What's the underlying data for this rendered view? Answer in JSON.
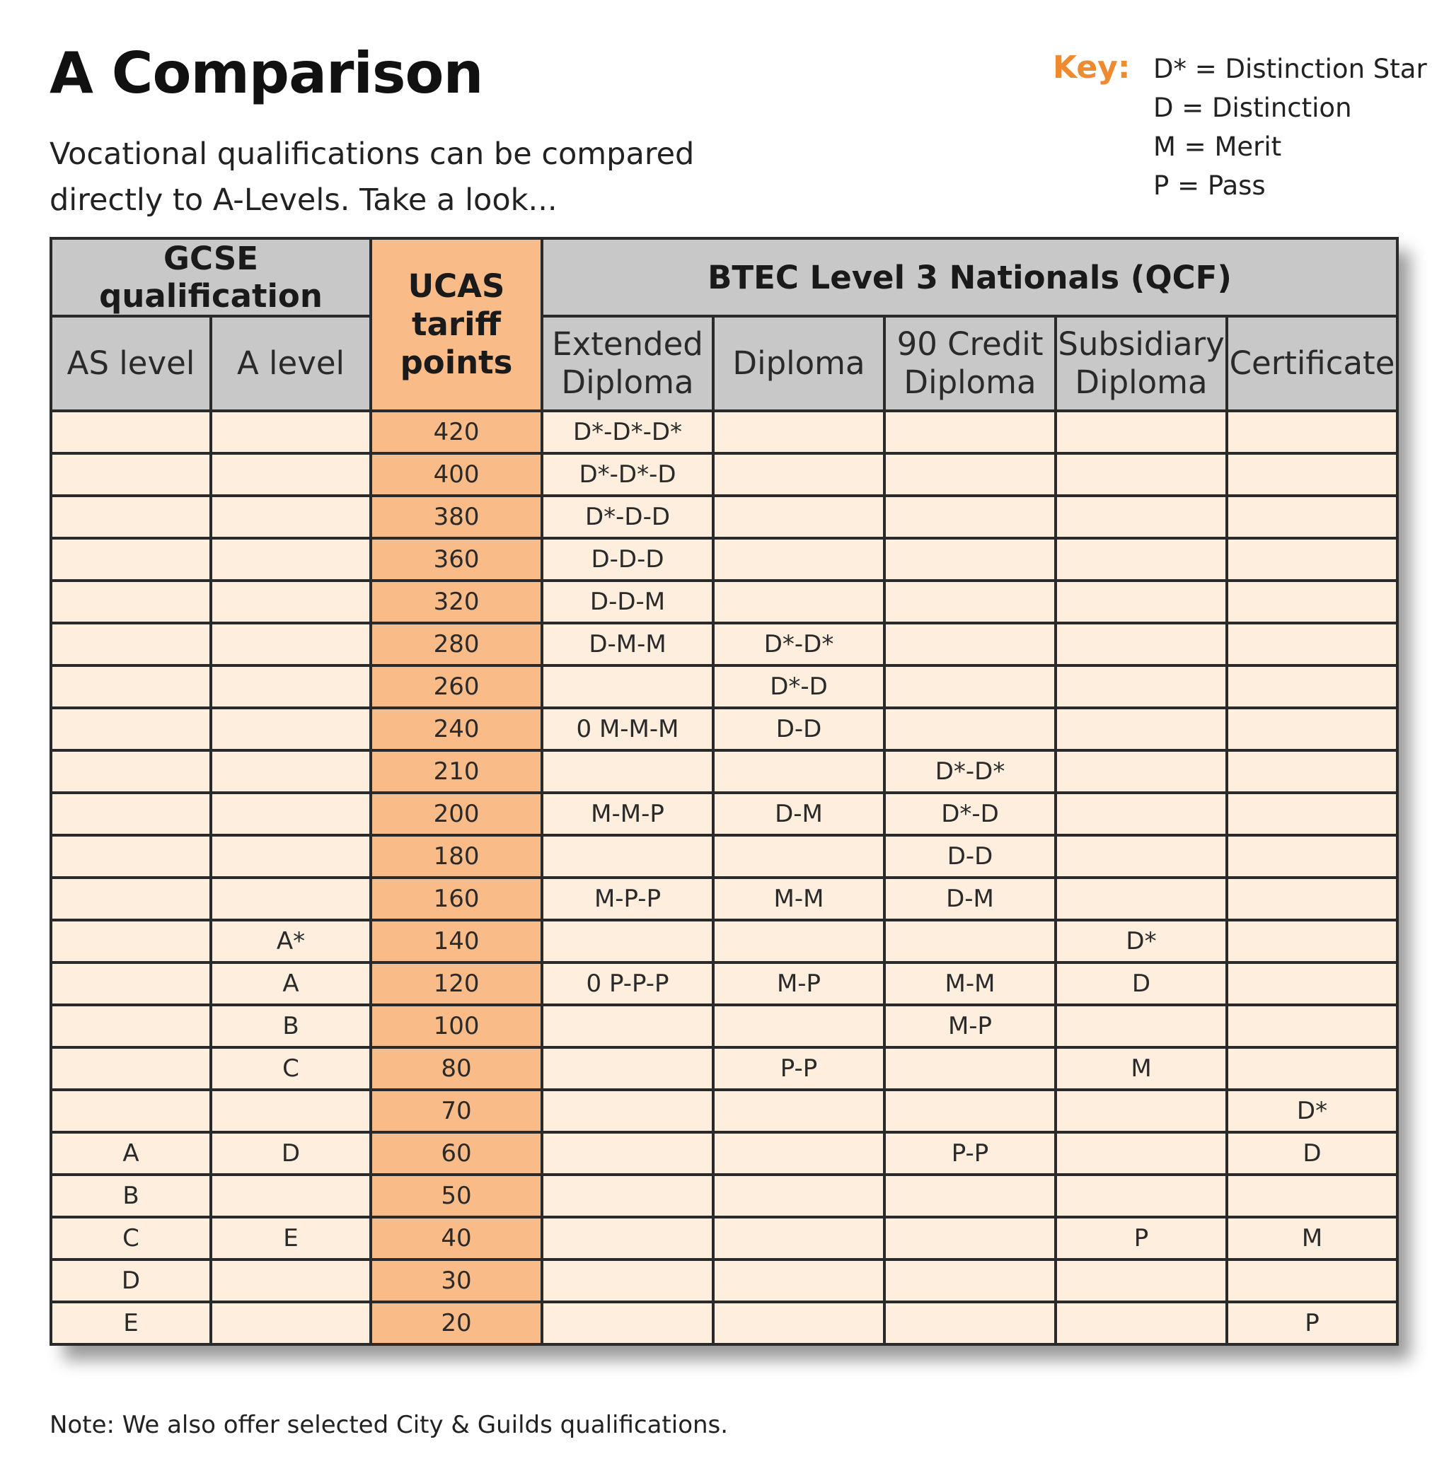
{
  "title": "A Comparison",
  "subtitle": "Vocational qualifications can be compared directly to A-Levels. Take a look...",
  "key": {
    "label": "Key:",
    "items": [
      "D* = Distinction Star",
      "D = Distinction",
      "M = Merit",
      "P = Pass"
    ]
  },
  "colors": {
    "accent_orange": "#f08a2e",
    "ucas_column": "#f9bb88",
    "cell_background": "#fdeedd",
    "header_grey": "#c8c8c8"
  },
  "table": {
    "group_headers": {
      "gcse": "GCSE qualification",
      "ucas": "UCAS tariff points",
      "btec": "BTEC Level 3 Nationals (QCF)"
    },
    "columns": [
      "AS level",
      "A level",
      "UCAS tariff points",
      "Extended Diploma",
      "Diploma",
      "90 Credit Diploma",
      "Subsidiary Diploma",
      "Certificate"
    ],
    "rows": [
      [
        "",
        "",
        "420",
        "D*-D*-D*",
        "",
        "",
        "",
        ""
      ],
      [
        "",
        "",
        "400",
        "D*-D*-D",
        "",
        "",
        "",
        ""
      ],
      [
        "",
        "",
        "380",
        "D*-D-D",
        "",
        "",
        "",
        ""
      ],
      [
        "",
        "",
        "360",
        "D-D-D",
        "",
        "",
        "",
        ""
      ],
      [
        "",
        "",
        "320",
        "D-D-M",
        "",
        "",
        "",
        ""
      ],
      [
        "",
        "",
        "280",
        "D-M-M",
        "D*-D*",
        "",
        "",
        ""
      ],
      [
        "",
        "",
        "260",
        "",
        "D*-D",
        "",
        "",
        ""
      ],
      [
        "",
        "",
        "240",
        "0 M-M-M",
        "D-D",
        "",
        "",
        ""
      ],
      [
        "",
        "",
        "210",
        "",
        "",
        "D*-D*",
        "",
        ""
      ],
      [
        "",
        "",
        "200",
        "M-M-P",
        "D-M",
        "D*-D",
        "",
        ""
      ],
      [
        "",
        "",
        "180",
        "",
        "",
        "D-D",
        "",
        ""
      ],
      [
        "",
        "",
        "160",
        "M-P-P",
        "M-M",
        "D-M",
        "",
        ""
      ],
      [
        "",
        "A*",
        "140",
        "",
        "",
        "",
        "D*",
        ""
      ],
      [
        "",
        "A",
        "120",
        "0 P-P-P",
        "M-P",
        "M-M",
        "D",
        ""
      ],
      [
        "",
        "B",
        "100",
        "",
        "",
        "M-P",
        "",
        ""
      ],
      [
        "",
        "C",
        "80",
        "",
        "P-P",
        "",
        "M",
        ""
      ],
      [
        "",
        "",
        "70",
        "",
        "",
        "",
        "",
        "D*"
      ],
      [
        "A",
        "D",
        "60",
        "",
        "",
        "P-P",
        "",
        "D"
      ],
      [
        "B",
        "",
        "50",
        "",
        "",
        "",
        "",
        ""
      ],
      [
        "C",
        "E",
        "40",
        "",
        "",
        "",
        "P",
        "M"
      ],
      [
        "D",
        "",
        "30",
        "",
        "",
        "",
        "",
        ""
      ],
      [
        "E",
        "",
        "20",
        "",
        "",
        "",
        "",
        "P"
      ]
    ]
  },
  "note": "Note: We also offer selected City & Guilds qualifications."
}
